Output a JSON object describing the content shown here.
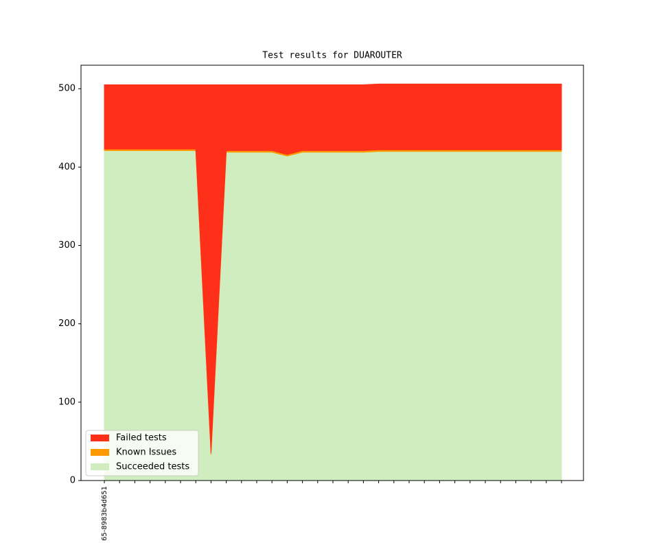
{
  "chart_data": {
    "type": "stacked-area",
    "title": "Test results for DUAROUTER",
    "categories": [
      "65-8983b4d651",
      null,
      null,
      null,
      null,
      null,
      null,
      null,
      null,
      null,
      null,
      null,
      null,
      null,
      null,
      null,
      null,
      null,
      null,
      null,
      null,
      null,
      null,
      null,
      null,
      null,
      null,
      null,
      null,
      null,
      null
    ],
    "series": [
      {
        "name": "Failed tests",
        "color": "#ff3019",
        "values": [
          82,
          82,
          82,
          82,
          82,
          82,
          82,
          470,
          84,
          84,
          84,
          84,
          89,
          84,
          84,
          84,
          84,
          84,
          84,
          84,
          84,
          84,
          84,
          84,
          84,
          84,
          84,
          84,
          84,
          84,
          84
        ]
      },
      {
        "name": "Known Issues",
        "color": "#ff9900",
        "values": [
          2,
          2,
          2,
          2,
          2,
          2,
          2,
          2,
          2,
          2,
          2,
          2,
          2,
          2,
          2,
          2,
          2,
          2,
          2,
          2,
          2,
          2,
          2,
          2,
          2,
          2,
          2,
          2,
          2,
          2,
          2
        ]
      },
      {
        "name": "Succeeded tests",
        "color": "#cfedbf",
        "values": [
          421,
          421,
          421,
          421,
          421,
          421,
          421,
          33,
          419,
          419,
          419,
          419,
          414,
          419,
          419,
          419,
          419,
          419,
          420,
          420,
          420,
          420,
          420,
          420,
          420,
          420,
          420,
          420,
          420,
          420,
          420
        ]
      }
    ],
    "ylim": [
      0,
      530
    ],
    "yticks": [
      0,
      100,
      200,
      300,
      400,
      500
    ],
    "legend": "lower left"
  }
}
